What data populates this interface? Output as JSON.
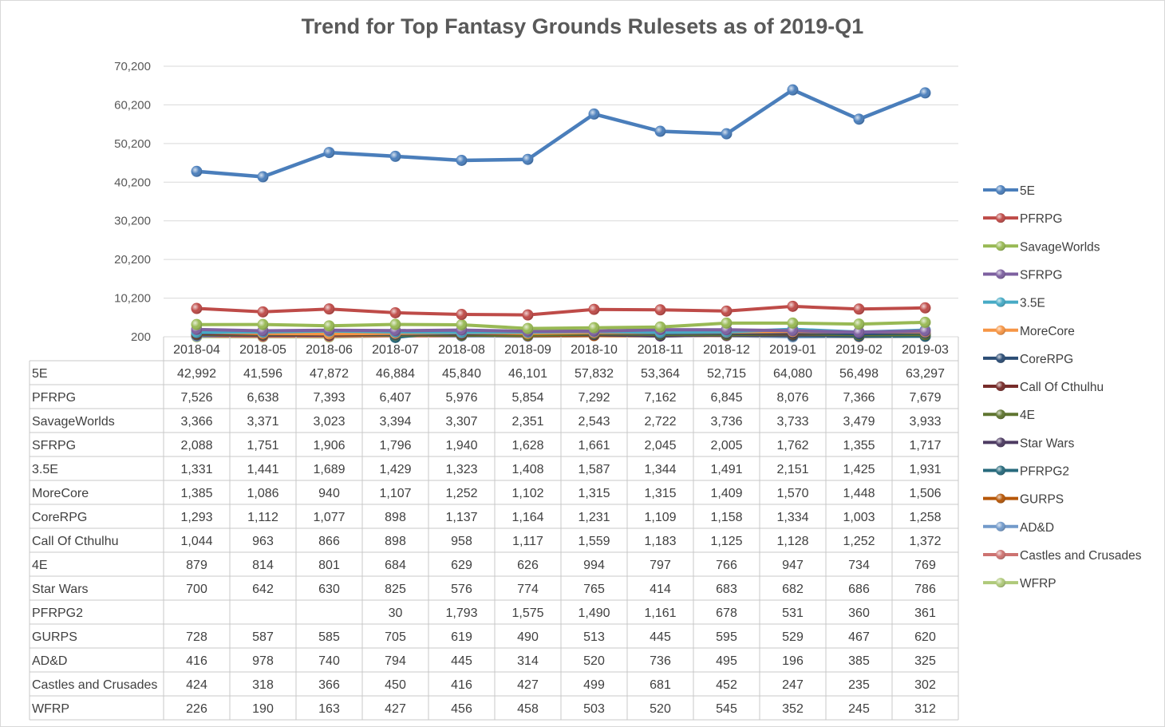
{
  "chart_data": {
    "type": "line",
    "title": "Trend for Top Fantasy Grounds Rulesets as of 2019-Q1",
    "xlabel": "",
    "ylabel": "",
    "ylim": [
      200,
      70200
    ],
    "yticks": [
      "200",
      "10,200",
      "20,200",
      "30,200",
      "40,200",
      "50,200",
      "60,200",
      "70,200"
    ],
    "ytick_values": [
      200,
      10200,
      20200,
      30200,
      40200,
      50200,
      60200,
      70200
    ],
    "categories": [
      "2018-04",
      "2018-05",
      "2018-06",
      "2018-07",
      "2018-08",
      "2018-09",
      "2018-10",
      "2018-11",
      "2018-12",
      "2019-01",
      "2019-02",
      "2019-03"
    ],
    "grid": true,
    "legend_position": "right",
    "data_table": true,
    "series": [
      {
        "name": "5E",
        "color": "#4a7ebb",
        "values": [
          42992,
          41596,
          47872,
          46884,
          45840,
          46101,
          57832,
          53364,
          52715,
          64080,
          56498,
          63297
        ],
        "labels": [
          "42,992",
          "41,596",
          "47,872",
          "46,884",
          "45,840",
          "46,101",
          "57,832",
          "53,364",
          "52,715",
          "64,080",
          "56,498",
          "63,297"
        ]
      },
      {
        "name": "PFRPG",
        "color": "#be4b48",
        "values": [
          7526,
          6638,
          7393,
          6407,
          5976,
          5854,
          7292,
          7162,
          6845,
          8076,
          7366,
          7679
        ],
        "labels": [
          "7,526",
          "6,638",
          "7,393",
          "6,407",
          "5,976",
          "5,854",
          "7,292",
          "7,162",
          "6,845",
          "8,076",
          "7,366",
          "7,679"
        ]
      },
      {
        "name": "SavageWorlds",
        "color": "#98b954",
        "values": [
          3366,
          3371,
          3023,
          3394,
          3307,
          2351,
          2543,
          2722,
          3736,
          3733,
          3479,
          3933
        ],
        "labels": [
          "3,366",
          "3,371",
          "3,023",
          "3,394",
          "3,307",
          "2,351",
          "2,543",
          "2,722",
          "3,736",
          "3,733",
          "3,479",
          "3,933"
        ]
      },
      {
        "name": "SFRPG",
        "color": "#7d60a0",
        "values": [
          2088,
          1751,
          1906,
          1796,
          1940,
          1628,
          1661,
          2045,
          2005,
          1762,
          1355,
          1717
        ],
        "labels": [
          "2,088",
          "1,751",
          "1,906",
          "1,796",
          "1,940",
          "1,628",
          "1,661",
          "2,045",
          "2,005",
          "1,762",
          "1,355",
          "1,717"
        ]
      },
      {
        "name": "3.5E",
        "color": "#46aac5",
        "values": [
          1331,
          1441,
          1689,
          1429,
          1323,
          1408,
          1587,
          1344,
          1491,
          2151,
          1425,
          1931
        ],
        "labels": [
          "1,331",
          "1,441",
          "1,689",
          "1,429",
          "1,323",
          "1,408",
          "1,587",
          "1,344",
          "1,491",
          "2,151",
          "1,425",
          "1,931"
        ]
      },
      {
        "name": "MoreCore",
        "color": "#f69545",
        "values": [
          1385,
          1086,
          940,
          1107,
          1252,
          1102,
          1315,
          1315,
          1409,
          1570,
          1448,
          1506
        ],
        "labels": [
          "1,385",
          "1,086",
          "940",
          "1,107",
          "1,252",
          "1,102",
          "1,315",
          "1,315",
          "1,409",
          "1,570",
          "1,448",
          "1,506"
        ]
      },
      {
        "name": "CoreRPG",
        "color": "#2c4d75",
        "values": [
          1293,
          1112,
          1077,
          898,
          1137,
          1164,
          1231,
          1109,
          1158,
          1334,
          1003,
          1258
        ],
        "labels": [
          "1,293",
          "1,112",
          "1,077",
          "898",
          "1,137",
          "1,164",
          "1,231",
          "1,109",
          "1,158",
          "1,334",
          "1,003",
          "1,258"
        ]
      },
      {
        "name": "Call Of Cthulhu",
        "color": "#772c2a",
        "values": [
          1044,
          963,
          866,
          898,
          958,
          1117,
          1559,
          1183,
          1125,
          1128,
          1252,
          1372
        ],
        "labels": [
          "1,044",
          "963",
          "866",
          "898",
          "958",
          "1,117",
          "1,559",
          "1,183",
          "1,125",
          "1,128",
          "1,252",
          "1,372"
        ]
      },
      {
        "name": "4E",
        "color": "#5f7530",
        "values": [
          879,
          814,
          801,
          684,
          629,
          626,
          994,
          797,
          766,
          947,
          734,
          769
        ],
        "labels": [
          "879",
          "814",
          "801",
          "684",
          "629",
          "626",
          "994",
          "797",
          "766",
          "947",
          "734",
          "769"
        ]
      },
      {
        "name": "Star Wars",
        "color": "#4d3b62",
        "values": [
          700,
          642,
          630,
          825,
          576,
          774,
          765,
          414,
          683,
          682,
          686,
          786
        ],
        "labels": [
          "700",
          "642",
          "630",
          "825",
          "576",
          "774",
          "765",
          "414",
          "683",
          "682",
          "686",
          "786"
        ]
      },
      {
        "name": "PFRPG2",
        "color": "#276a7c",
        "values": [
          null,
          null,
          null,
          30,
          1793,
          1575,
          1490,
          1161,
          678,
          531,
          360,
          361
        ],
        "labels": [
          "",
          "",
          "",
          "30",
          "1,793",
          "1,575",
          "1,490",
          "1,161",
          "678",
          "531",
          "360",
          "361"
        ]
      },
      {
        "name": "GURPS",
        "color": "#b65708",
        "values": [
          728,
          587,
          585,
          705,
          619,
          490,
          513,
          445,
          595,
          529,
          467,
          620
        ],
        "labels": [
          "728",
          "587",
          "585",
          "705",
          "619",
          "490",
          "513",
          "445",
          "595",
          "529",
          "467",
          "620"
        ]
      },
      {
        "name": "AD&D",
        "color": "#729aca",
        "values": [
          416,
          978,
          740,
          794,
          445,
          314,
          520,
          736,
          495,
          196,
          385,
          325
        ],
        "labels": [
          "416",
          "978",
          "740",
          "794",
          "445",
          "314",
          "520",
          "736",
          "495",
          "196",
          "385",
          "325"
        ]
      },
      {
        "name": "Castles and Crusades",
        "color": "#cd7371",
        "values": [
          424,
          318,
          366,
          450,
          416,
          427,
          499,
          681,
          452,
          247,
          235,
          302
        ],
        "labels": [
          "424",
          "318",
          "366",
          "450",
          "416",
          "427",
          "499",
          "681",
          "452",
          "247",
          "235",
          "302"
        ]
      },
      {
        "name": "WFRP",
        "color": "#afc97a",
        "values": [
          226,
          190,
          163,
          427,
          456,
          458,
          503,
          520,
          545,
          352,
          245,
          312
        ],
        "labels": [
          "226",
          "190",
          "163",
          "427",
          "456",
          "458",
          "503",
          "520",
          "545",
          "352",
          "245",
          "312"
        ]
      }
    ]
  }
}
